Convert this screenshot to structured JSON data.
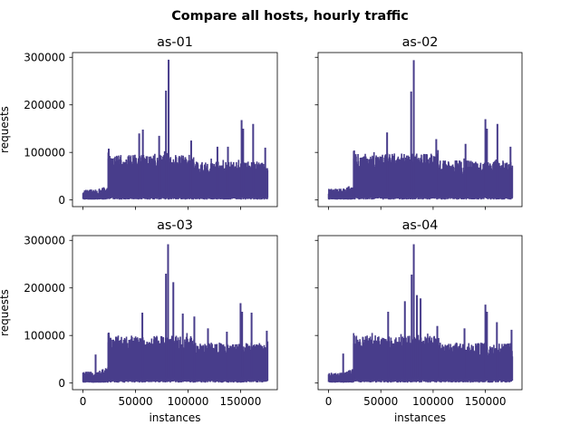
{
  "figure": {
    "title": "Compare all hosts, hourly traffic"
  },
  "colors": {
    "series": "#483d8b",
    "axes": "#000000",
    "background": "#ffffff"
  },
  "chart_data": [
    {
      "type": "line",
      "title": "as-01",
      "xlabel": "",
      "ylabel": "requests",
      "xlim": [
        -10000,
        185000
      ],
      "ylim": [
        -14000,
        310000
      ],
      "yticks": [
        0,
        100000,
        200000,
        300000
      ],
      "ytick_labels": [
        "0",
        "100000",
        "200000",
        "300000"
      ],
      "xticks": [
        0,
        50000,
        100000,
        150000
      ],
      "xtick_labels": [],
      "x_start": 0,
      "x_end": 176000,
      "ramp_x": 24000,
      "baseline_low": 2000,
      "pre_ramp_high": 22000,
      "post_ramp_high": 95000,
      "post_ramp_low": 4000,
      "peaks": [
        {
          "x": 79000,
          "y": 230000
        },
        {
          "x": 81500,
          "y": 295000
        },
        {
          "x": 53500,
          "y": 140000
        },
        {
          "x": 57000,
          "y": 148000
        },
        {
          "x": 72500,
          "y": 135000
        },
        {
          "x": 103000,
          "y": 125000
        },
        {
          "x": 128000,
          "y": 112000
        },
        {
          "x": 138000,
          "y": 112000
        },
        {
          "x": 151000,
          "y": 168000
        },
        {
          "x": 152500,
          "y": 150000
        },
        {
          "x": 162000,
          "y": 160000
        },
        {
          "x": 173500,
          "y": 110000
        },
        {
          "x": 24500,
          "y": 108000
        }
      ],
      "grid": false
    },
    {
      "type": "line",
      "title": "as-02",
      "xlabel": "",
      "ylabel": "",
      "xlim": [
        -10000,
        185000
      ],
      "ylim": [
        -14000,
        310000
      ],
      "yticks": [
        0,
        100000,
        200000,
        300000
      ],
      "ytick_labels": [],
      "xticks": [
        0,
        50000,
        100000,
        150000
      ],
      "xtick_labels": [],
      "x_start": 0,
      "x_end": 176000,
      "ramp_x": 24000,
      "baseline_low": 2000,
      "pre_ramp_high": 24000,
      "post_ramp_high": 98000,
      "post_ramp_low": 4000,
      "peaks": [
        {
          "x": 79000,
          "y": 228000
        },
        {
          "x": 81500,
          "y": 294000
        },
        {
          "x": 56000,
          "y": 142000
        },
        {
          "x": 103000,
          "y": 128000
        },
        {
          "x": 131000,
          "y": 118000
        },
        {
          "x": 150000,
          "y": 170000
        },
        {
          "x": 151500,
          "y": 150000
        },
        {
          "x": 161500,
          "y": 160000
        },
        {
          "x": 174000,
          "y": 112000
        },
        {
          "x": 24500,
          "y": 104000
        }
      ],
      "grid": false
    },
    {
      "type": "line",
      "title": "as-03",
      "xlabel": "instances",
      "ylabel": "requests",
      "xlim": [
        -10000,
        185000
      ],
      "ylim": [
        -14000,
        310000
      ],
      "yticks": [
        0,
        100000,
        200000,
        300000
      ],
      "ytick_labels": [
        "0",
        "100000",
        "200000",
        "300000"
      ],
      "xticks": [
        0,
        50000,
        100000,
        150000
      ],
      "xtick_labels": [
        "0",
        "50000",
        "100000",
        "150000"
      ],
      "x_start": 0,
      "x_end": 176000,
      "ramp_x": 24000,
      "baseline_low": 2000,
      "pre_ramp_high": 24000,
      "post_ramp_high": 100000,
      "post_ramp_low": 4000,
      "peaks": [
        {
          "x": 79000,
          "y": 230000
        },
        {
          "x": 81000,
          "y": 292000
        },
        {
          "x": 12000,
          "y": 60000
        },
        {
          "x": 56500,
          "y": 148000
        },
        {
          "x": 86000,
          "y": 212000
        },
        {
          "x": 95000,
          "y": 146000
        },
        {
          "x": 106000,
          "y": 140000
        },
        {
          "x": 119000,
          "y": 115000
        },
        {
          "x": 137000,
          "y": 108000
        },
        {
          "x": 150000,
          "y": 168000
        },
        {
          "x": 151500,
          "y": 150000
        },
        {
          "x": 160500,
          "y": 148000
        },
        {
          "x": 175000,
          "y": 110000
        },
        {
          "x": 24500,
          "y": 106000
        }
      ],
      "grid": false
    },
    {
      "type": "line",
      "title": "as-04",
      "xlabel": "instances",
      "ylabel": "",
      "xlim": [
        -10000,
        185000
      ],
      "ylim": [
        -14000,
        310000
      ],
      "yticks": [
        0,
        100000,
        200000,
        300000
      ],
      "ytick_labels": [],
      "xticks": [
        0,
        50000,
        100000,
        150000
      ],
      "xtick_labels": [
        "0",
        "50000",
        "100000",
        "150000"
      ],
      "x_start": 0,
      "x_end": 176000,
      "ramp_x": 24000,
      "baseline_low": 2000,
      "pre_ramp_high": 22000,
      "post_ramp_high": 100000,
      "post_ramp_low": 4000,
      "peaks": [
        {
          "x": 14000,
          "y": 62000
        },
        {
          "x": 57000,
          "y": 150000
        },
        {
          "x": 73000,
          "y": 172000
        },
        {
          "x": 79500,
          "y": 228000
        },
        {
          "x": 81500,
          "y": 292000
        },
        {
          "x": 84500,
          "y": 185000
        },
        {
          "x": 88000,
          "y": 178000
        },
        {
          "x": 104000,
          "y": 120000
        },
        {
          "x": 130000,
          "y": 115000
        },
        {
          "x": 150000,
          "y": 165000
        },
        {
          "x": 151500,
          "y": 150000
        },
        {
          "x": 161000,
          "y": 128000
        },
        {
          "x": 175000,
          "y": 112000
        },
        {
          "x": 24500,
          "y": 100000
        }
      ],
      "grid": false
    }
  ]
}
